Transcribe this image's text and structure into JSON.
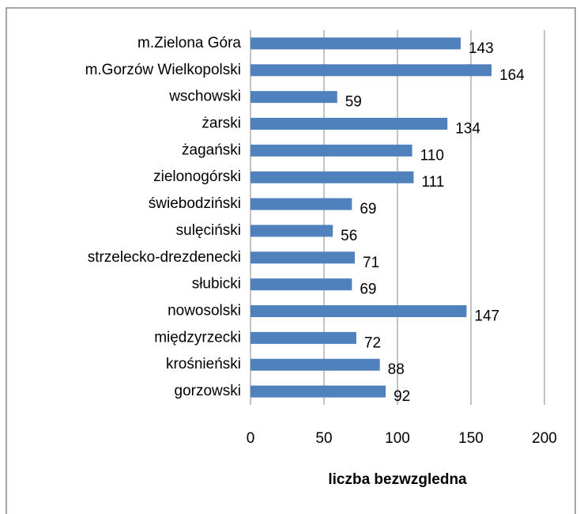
{
  "chart_data": {
    "type": "bar",
    "orientation": "horizontal",
    "categories": [
      "m.Zielona Góra",
      "m.Gorzów Wielkopolski",
      "wschowski",
      "żarski",
      "żagański",
      "zielonogórski",
      "świebodziński",
      "sulęciński",
      "strzelecko-drezdenecki",
      "słubicki",
      "nowosolski",
      "międzyrzecki",
      "krośnieński",
      "gorzowski"
    ],
    "values": [
      143,
      164,
      59,
      134,
      110,
      111,
      69,
      56,
      71,
      69,
      147,
      72,
      88,
      92
    ],
    "color": "#4f81bd",
    "xlim": [
      0,
      200
    ],
    "xticks": [
      0,
      50,
      100,
      150,
      200
    ],
    "grid": true,
    "x_label": "liczba bezwzgledna"
  }
}
